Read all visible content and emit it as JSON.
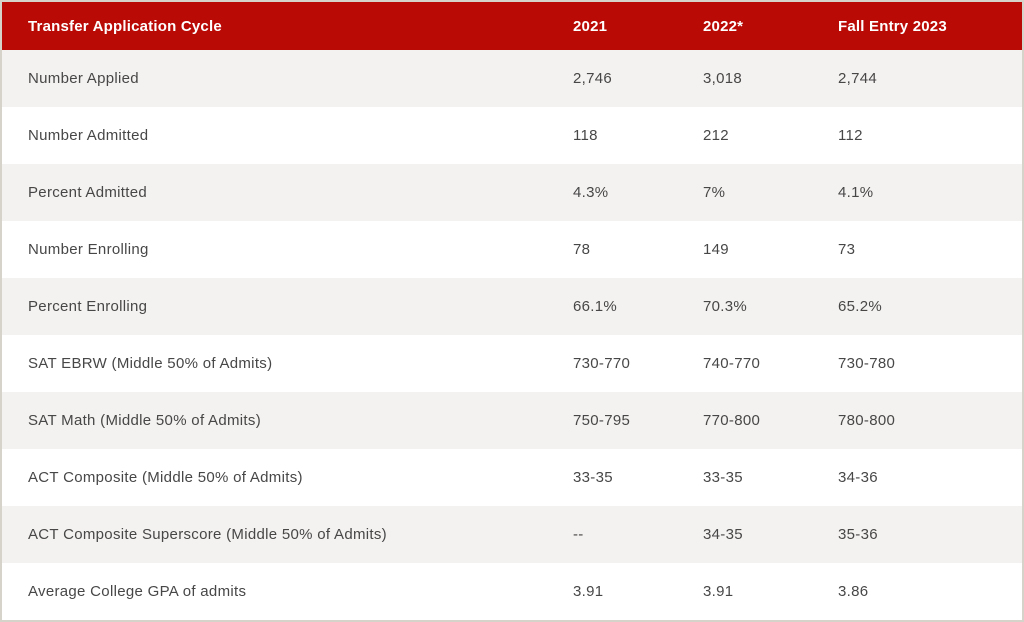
{
  "colors": {
    "header_bg": "#b90a06",
    "header_text": "#ffffff",
    "row_alt_bg": "#f4f2f0",
    "row_bg": "#ffffff",
    "body_text": "#474747",
    "border": "#d6d3cb"
  },
  "table": {
    "header": {
      "label": "Transfer Application Cycle",
      "col_2021": "2021",
      "col_2022": "2022*",
      "col_2023": "Fall Entry 2023"
    },
    "rows": [
      {
        "label": "Number Applied",
        "v2021": "2,746",
        "v2022": "3,018",
        "v2023": "2,744"
      },
      {
        "label": "Number Admitted",
        "v2021": "118",
        "v2022": "212",
        "v2023": "112"
      },
      {
        "label": "Percent Admitted",
        "v2021": "4.3%",
        "v2022": "7%",
        "v2023": "4.1%"
      },
      {
        "label": "Number Enrolling",
        "v2021": "78",
        "v2022": "149",
        "v2023": "73"
      },
      {
        "label": "Percent Enrolling",
        "v2021": "66.1%",
        "v2022": "70.3%",
        "v2023": "65.2%"
      },
      {
        "label": "SAT EBRW (Middle 50% of Admits)",
        "v2021": "730-770",
        "v2022": "740-770",
        "v2023": "730-780"
      },
      {
        "label": "SAT Math (Middle 50% of Admits)",
        "v2021": "750-795",
        "v2022": "770-800",
        "v2023": "780-800"
      },
      {
        "label": "ACT Composite (Middle 50% of Admits)",
        "v2021": "33-35",
        "v2022": "33-35",
        "v2023": "34-36"
      },
      {
        "label": "ACT Composite Superscore (Middle 50% of Admits)",
        "v2021": "--",
        "v2022": "34-35",
        "v2023": "35-36"
      },
      {
        "label": "Average College GPA of admits",
        "v2021": "3.91",
        "v2022": "3.91",
        "v2023": "3.86"
      }
    ]
  },
  "chart_data": {
    "type": "table",
    "title": "Transfer Application Cycle",
    "columns": [
      "Transfer Application Cycle",
      "2021",
      "2022*",
      "Fall Entry 2023"
    ],
    "rows": [
      [
        "Number Applied",
        "2,746",
        "3,018",
        "2,744"
      ],
      [
        "Number Admitted",
        "118",
        "212",
        "112"
      ],
      [
        "Percent Admitted",
        "4.3%",
        "7%",
        "4.1%"
      ],
      [
        "Number Enrolling",
        "78",
        "149",
        "73"
      ],
      [
        "Percent Enrolling",
        "66.1%",
        "70.3%",
        "65.2%"
      ],
      [
        "SAT EBRW (Middle 50% of Admits)",
        "730-770",
        "740-770",
        "730-780"
      ],
      [
        "SAT Math (Middle 50% of Admits)",
        "750-795",
        "770-800",
        "780-800"
      ],
      [
        "ACT Composite (Middle 50% of Admits)",
        "33-35",
        "33-35",
        "34-36"
      ],
      [
        "ACT Composite Superscore (Middle 50% of Admits)",
        "--",
        "34-35",
        "35-36"
      ],
      [
        "Average College GPA of admits",
        "3.91",
        "3.91",
        "3.86"
      ]
    ],
    "layout": {
      "striped": true,
      "header_style": "solid-red",
      "grid": "none"
    }
  }
}
